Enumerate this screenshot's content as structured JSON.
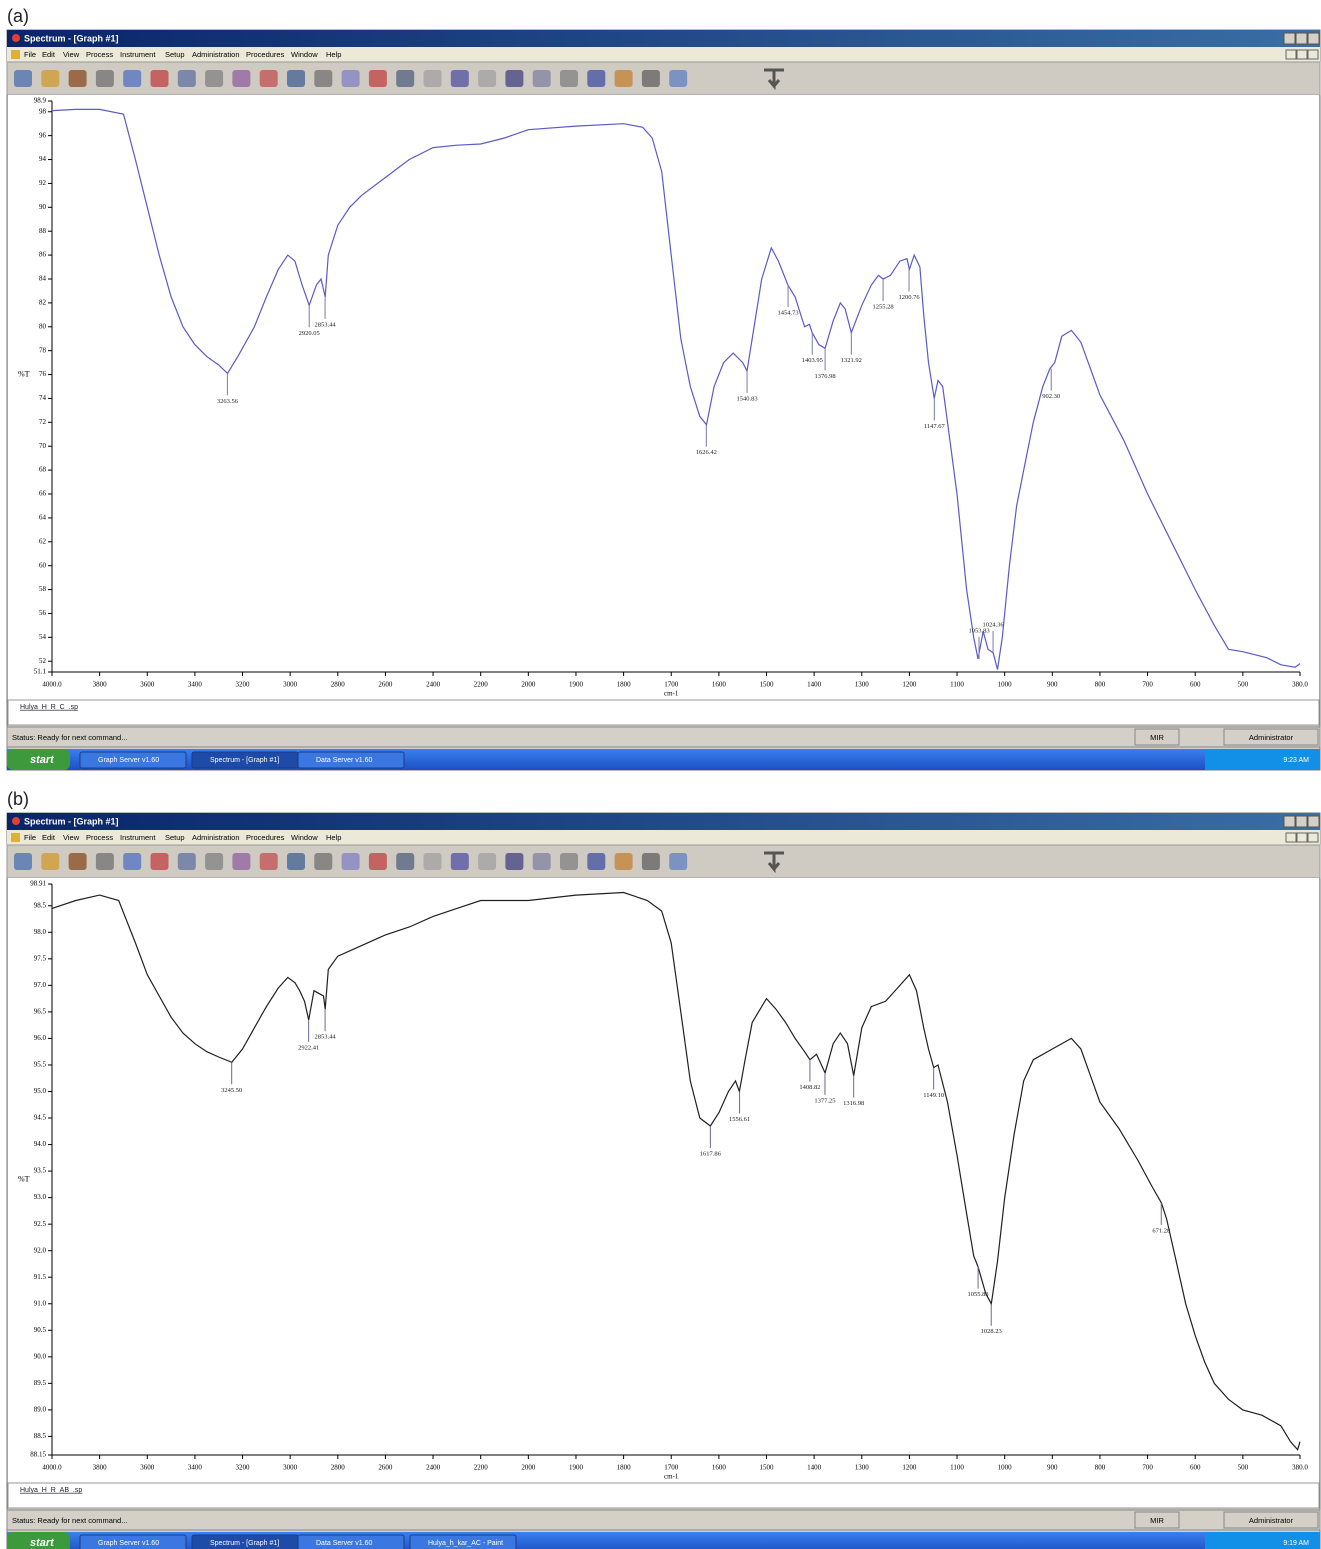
{
  "panels": [
    {
      "label": "(a)",
      "title_bar": "Spectrum - [Graph #1]",
      "menu": [
        "File",
        "Edit",
        "View",
        "Process",
        "Instrument",
        "Setup",
        "Administration",
        "Procedures",
        "Window",
        "Help"
      ],
      "file_name": "Hulya_H_R_C_.sp",
      "status": "Status: Ready for next command...",
      "status_mode": "MIR",
      "user": "Administrator",
      "taskbar": {
        "start": "start",
        "tasks": [
          "Graph Server v1.60",
          "Spectrum - [Graph #1]",
          "Data Server v1.60"
        ],
        "clock": "9:23 AM"
      }
    },
    {
      "label": "(b)",
      "title_bar": "Spectrum - [Graph #1]",
      "menu": [
        "File",
        "Edit",
        "View",
        "Process",
        "Instrument",
        "Setup",
        "Administration",
        "Procedures",
        "Window",
        "Help"
      ],
      "file_name": "Hulya_H_R_AB_.sp",
      "status": "Status: Ready for next command...",
      "status_mode": "MIR",
      "user": "Administrator",
      "taskbar": {
        "start": "start",
        "tasks": [
          "Graph Server v1.60",
          "Spectrum - [Graph #1]",
          "Data Server v1.60",
          "Hulya_h_kar_AC - Paint"
        ],
        "clock": "9:19 AM"
      }
    }
  ],
  "chart_data": [
    {
      "type": "line",
      "y_label": "%T",
      "x_label": "cm-1",
      "color": "#5a5ac8",
      "peak_color": "#7a7aa8",
      "grid": false,
      "xlim": [
        4000,
        380
      ],
      "xticks": [
        {
          "value": 4000,
          "label": "4000.0"
        },
        3800,
        3600,
        3400,
        3200,
        3000,
        2800,
        2600,
        2400,
        2200,
        2000,
        1900,
        1800,
        1700,
        1600,
        1500,
        1400,
        1300,
        1200,
        1100,
        1000,
        900,
        800,
        700,
        600,
        500,
        {
          "value": 380,
          "label": "380.0"
        }
      ],
      "ylim": [
        51.1,
        98.9
      ],
      "yticks": [
        51.1,
        52,
        54,
        56,
        58,
        60,
        62,
        64,
        66,
        68,
        70,
        72,
        74,
        76,
        78,
        80,
        82,
        84,
        86,
        88,
        90,
        92,
        94,
        96,
        98,
        98.9
      ],
      "x": [
        4000,
        3900,
        3800,
        3700,
        3650,
        3600,
        3550,
        3500,
        3450,
        3400,
        3350,
        3300,
        3263,
        3220,
        3150,
        3100,
        3050,
        3010,
        2980,
        2950,
        2920,
        2890,
        2870,
        2853,
        2840,
        2800,
        2750,
        2700,
        2600,
        2500,
        2400,
        2300,
        2200,
        2100,
        2000,
        1900,
        1800,
        1760,
        1740,
        1720,
        1700,
        1680,
        1660,
        1640,
        1626,
        1610,
        1590,
        1570,
        1550,
        1541,
        1530,
        1510,
        1490,
        1475,
        1455,
        1440,
        1420,
        1410,
        1404,
        1390,
        1377,
        1360,
        1345,
        1335,
        1322,
        1300,
        1280,
        1265,
        1255,
        1240,
        1220,
        1205,
        1200,
        1190,
        1178,
        1170,
        1160,
        1148,
        1140,
        1130,
        1120,
        1100,
        1080,
        1065,
        1056,
        1045,
        1035,
        1024,
        1015,
        1005,
        990,
        975,
        960,
        940,
        920,
        905,
        895,
        880,
        860,
        840,
        820,
        800,
        750,
        700,
        650,
        600,
        560,
        530,
        500,
        450,
        420,
        390,
        380
      ],
      "values": [
        98.1,
        98.2,
        98.2,
        97.8,
        94,
        90,
        86,
        82.5,
        80,
        78.5,
        77.5,
        76.8,
        76.1,
        77.5,
        80,
        82.5,
        84.8,
        86,
        85.5,
        83.5,
        81.8,
        83.5,
        84,
        82.5,
        86,
        88.5,
        90,
        91,
        92.5,
        94,
        95,
        95.2,
        95.3,
        95.8,
        96.5,
        96.8,
        97,
        96.7,
        95.8,
        93,
        86,
        79,
        75,
        72.5,
        71.8,
        75,
        77,
        77.8,
        77,
        76.3,
        79,
        84,
        86.6,
        85.5,
        83.5,
        82.5,
        80,
        80.2,
        79.5,
        78.5,
        78.2,
        80.5,
        82,
        81.5,
        79.5,
        81.8,
        83.5,
        84.3,
        84,
        84.3,
        85.5,
        85.7,
        84.8,
        86,
        85,
        81,
        77,
        74,
        75.5,
        75,
        72,
        66,
        58,
        54,
        52.2,
        54.5,
        53,
        52.7,
        51.3,
        54,
        60,
        65,
        68,
        72,
        75,
        76.5,
        77,
        79.2,
        79.7,
        78.7,
        76.5,
        74.3,
        70.5,
        66,
        62,
        58,
        55,
        53,
        52.8,
        52.3,
        51.7,
        51.5,
        51.8
      ],
      "peaks": [
        {
          "x": 3263.56,
          "y": 76.1,
          "label": "3263.56"
        },
        {
          "x": 2920.05,
          "y": 81.8,
          "label": "2920.05"
        },
        {
          "x": 2853.44,
          "y": 82.5,
          "label": "2853.44"
        },
        {
          "x": 1626.42,
          "y": 71.8,
          "label": "1626.42"
        },
        {
          "x": 1540.83,
          "y": 76.3,
          "label": "1540.83"
        },
        {
          "x": 1454.73,
          "y": 83.5,
          "label": "1454.73"
        },
        {
          "x": 1403.95,
          "y": 79.5,
          "label": "1403.95"
        },
        {
          "x": 1376.98,
          "y": 78.2,
          "label": "1376.98"
        },
        {
          "x": 1321.92,
          "y": 79.5,
          "label": "1321.92"
        },
        {
          "x": 1255.28,
          "y": 84,
          "label": "1255.28"
        },
        {
          "x": 1200.76,
          "y": 84.8,
          "label": "1200.76"
        },
        {
          "x": 1147.67,
          "y": 74,
          "label": "1147.67"
        },
        {
          "x": 1053.83,
          "y": 52.2,
          "label": "1053.83"
        },
        {
          "x": 1024.36,
          "y": 52.7,
          "label": "1024.36"
        },
        {
          "x": 902.3,
          "y": 76.5,
          "label": "902.30"
        }
      ]
    },
    {
      "type": "line",
      "y_label": "%T",
      "x_label": "cm-1",
      "color": "#202020",
      "peak_color": "#6a6a90",
      "grid": false,
      "xlim": [
        4000,
        380
      ],
      "xticks": [
        {
          "value": 4000,
          "label": "4000.0"
        },
        3800,
        3600,
        3400,
        3200,
        3000,
        2800,
        2600,
        2400,
        2200,
        2000,
        1900,
        1800,
        1700,
        1600,
        1500,
        1400,
        1300,
        1200,
        1100,
        1000,
        900,
        800,
        700,
        600,
        500,
        {
          "value": 380,
          "label": "380.0"
        }
      ],
      "ylim": [
        88.15,
        98.91
      ],
      "yticks": [
        88.15,
        88.5,
        {
          "value": 89,
          "label": "89.0"
        },
        89.5,
        {
          "value": 90,
          "label": "90.0"
        },
        90.5,
        {
          "value": 91,
          "label": "91.0"
        },
        91.5,
        {
          "value": 92,
          "label": "92.0"
        },
        92.5,
        {
          "value": 93,
          "label": "93.0"
        },
        93.5,
        {
          "value": 94,
          "label": "94.0"
        },
        94.5,
        {
          "value": 95,
          "label": "95.0"
        },
        95.5,
        {
          "value": 96,
          "label": "96.0"
        },
        96.5,
        {
          "value": 97,
          "label": "97.0"
        },
        97.5,
        {
          "value": 98,
          "label": "98.0"
        },
        98.5,
        98.91
      ],
      "x": [
        4000,
        3900,
        3800,
        3720,
        3650,
        3600,
        3550,
        3500,
        3450,
        3400,
        3350,
        3300,
        3245,
        3200,
        3150,
        3100,
        3050,
        3010,
        2980,
        2960,
        2940,
        2922,
        2900,
        2880,
        2860,
        2853,
        2840,
        2800,
        2700,
        2600,
        2500,
        2400,
        2300,
        2200,
        2100,
        2000,
        1900,
        1800,
        1750,
        1720,
        1700,
        1680,
        1660,
        1640,
        1618,
        1600,
        1580,
        1565,
        1557,
        1545,
        1530,
        1500,
        1480,
        1460,
        1440,
        1420,
        1409,
        1395,
        1377,
        1360,
        1345,
        1330,
        1317,
        1300,
        1280,
        1250,
        1220,
        1200,
        1185,
        1170,
        1160,
        1149,
        1140,
        1120,
        1100,
        1080,
        1065,
        1056,
        1040,
        1028,
        1015,
        1000,
        980,
        960,
        940,
        900,
        860,
        840,
        820,
        800,
        760,
        720,
        690,
        671,
        660,
        640,
        620,
        600,
        580,
        560,
        530,
        500,
        460,
        420,
        400,
        385,
        380
      ],
      "values": [
        98.45,
        98.6,
        98.7,
        98.6,
        97.8,
        97.2,
        96.8,
        96.4,
        96.1,
        95.9,
        95.75,
        95.65,
        95.55,
        95.8,
        96.2,
        96.6,
        96.95,
        97.15,
        97.05,
        96.9,
        96.7,
        96.35,
        96.9,
        96.85,
        96.8,
        96.55,
        97.3,
        97.55,
        97.75,
        97.95,
        98.1,
        98.3,
        98.45,
        98.6,
        98.6,
        98.6,
        98.7,
        98.75,
        98.6,
        98.4,
        97.8,
        96.5,
        95.2,
        94.5,
        94.35,
        94.6,
        95,
        95.2,
        95,
        95.6,
        96.3,
        96.75,
        96.55,
        96.3,
        96,
        95.75,
        95.6,
        95.7,
        95.35,
        95.9,
        96.1,
        95.9,
        95.3,
        96.2,
        96.6,
        96.7,
        97,
        97.2,
        96.9,
        96.2,
        95.8,
        95.45,
        95.5,
        94.8,
        93.8,
        92.7,
        91.9,
        91.7,
        91.2,
        91,
        91.8,
        93,
        94.2,
        95.2,
        95.6,
        95.8,
        96,
        95.8,
        95.3,
        94.8,
        94.3,
        93.7,
        93.2,
        92.9,
        92.6,
        91.8,
        91,
        90.4,
        89.9,
        89.5,
        89.2,
        89,
        88.9,
        88.7,
        88.4,
        88.25,
        88.4
      ],
      "peaks": [
        {
          "x": 3245.5,
          "y": 95.55,
          "label": "3245.50"
        },
        {
          "x": 2922.41,
          "y": 96.35,
          "label": "2922.41"
        },
        {
          "x": 2853.44,
          "y": 96.55,
          "label": "2853.44"
        },
        {
          "x": 1617.86,
          "y": 94.35,
          "label": "1617.86"
        },
        {
          "x": 1556.61,
          "y": 95,
          "label": "1556.61"
        },
        {
          "x": 1408.82,
          "y": 95.6,
          "label": "1408.82"
        },
        {
          "x": 1377.25,
          "y": 95.35,
          "label": "1377.25"
        },
        {
          "x": 1316.98,
          "y": 95.3,
          "label": "1316.98"
        },
        {
          "x": 1149.1,
          "y": 95.45,
          "label": "1149.10"
        },
        {
          "x": 1055.83,
          "y": 91.7,
          "label": "1055.83"
        },
        {
          "x": 1028.23,
          "y": 91,
          "label": "1028.23"
        },
        {
          "x": 671.28,
          "y": 92.9,
          "label": "671.28"
        }
      ]
    }
  ]
}
